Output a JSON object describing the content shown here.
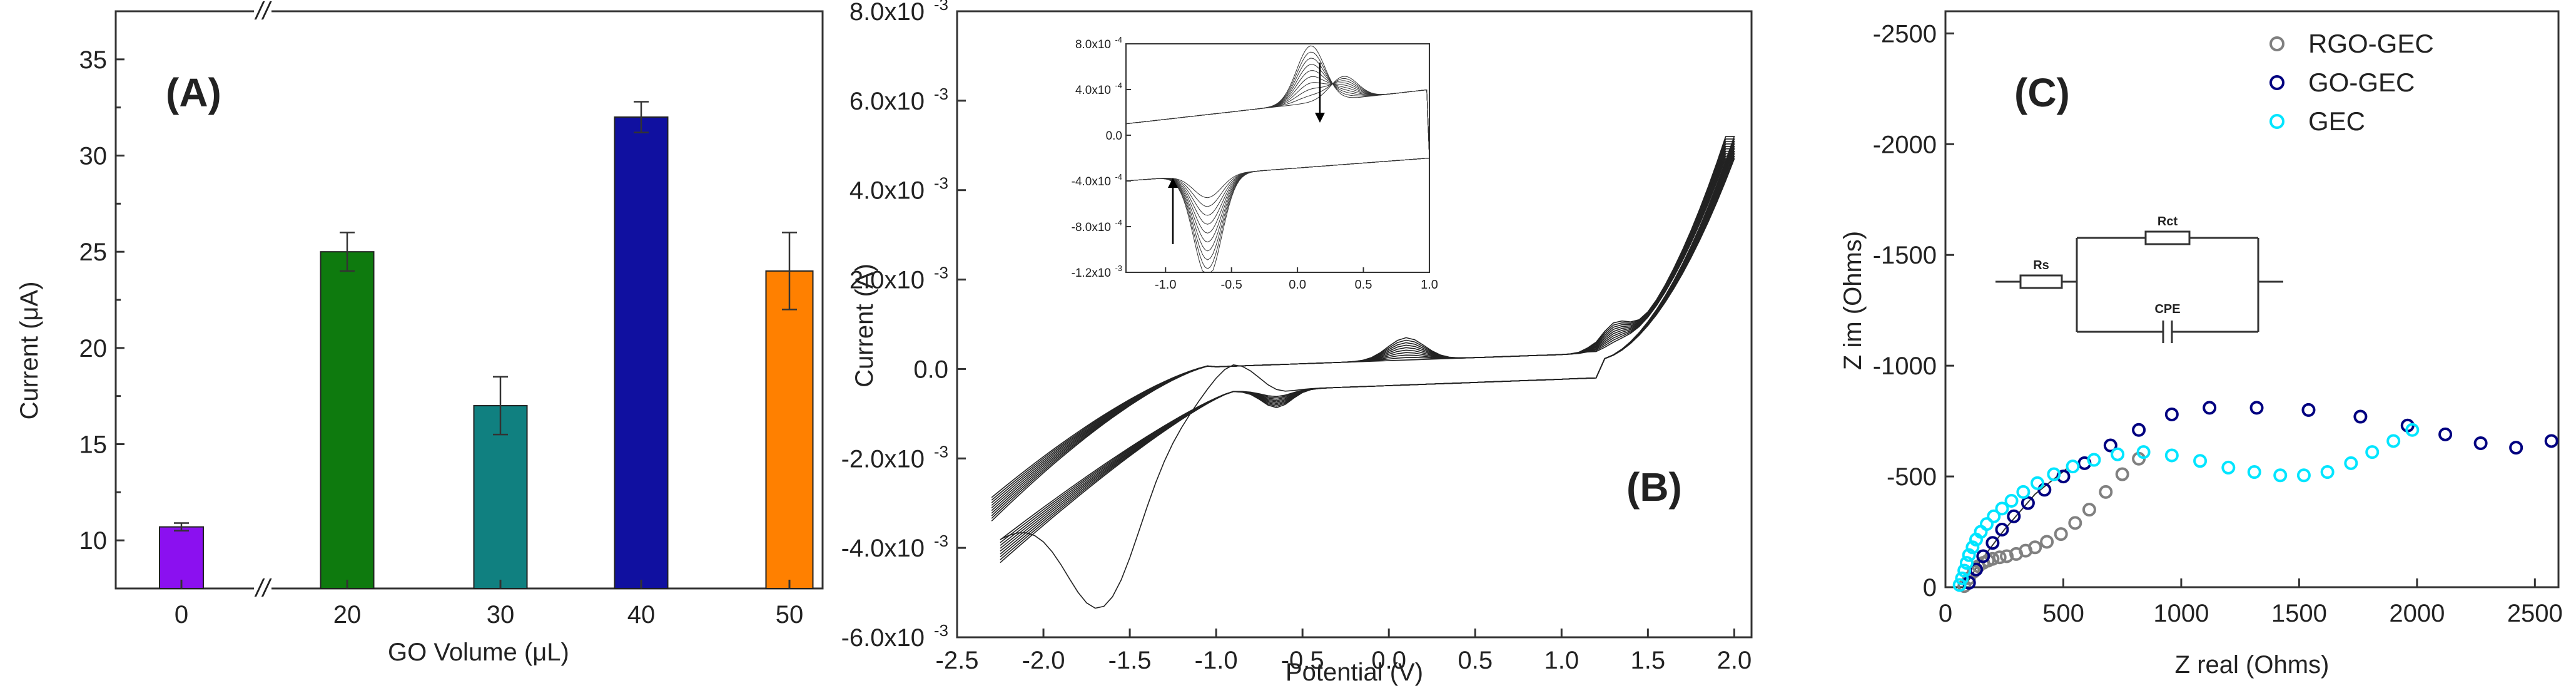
{
  "chart_data": [
    {
      "type": "bar",
      "panel_label": "(A)",
      "categories": [
        "0",
        "20",
        "30",
        "40",
        "50"
      ],
      "values": [
        10.7,
        25.0,
        17.0,
        32.0,
        24.0
      ],
      "errors": [
        0.2,
        1.0,
        1.5,
        0.8,
        2.0
      ],
      "colors": [
        "#8B10F0",
        "#0E7A0E",
        "#108080",
        "#1010A0",
        "#FF8000"
      ],
      "xlabel": "GO Volume (μL)",
      "ylabel": "Current (μA)",
      "ylim": [
        7.5,
        37.5
      ],
      "yticks": [
        "10",
        "15",
        "20",
        "25",
        "30",
        "35"
      ],
      "axis_break": "//"
    },
    {
      "type": "line",
      "panel_label": "(B)",
      "xlabel": "Potential (V)",
      "ylabel": "Current (A)",
      "xlim": [
        -2.5,
        2.1
      ],
      "ylim": [
        -0.006,
        0.008
      ],
      "xticks": [
        "-2.5",
        "-2.0",
        "-1.5",
        "-1.0",
        "-0.5",
        "0.0",
        "0.5",
        "1.0",
        "1.5",
        "2.0"
      ],
      "yticks": [
        "-6.0x10",
        "-4.0x10",
        "-2.0x10",
        "0.0",
        "2.0x10",
        "4.0x10",
        "6.0x10",
        "8.0x10"
      ],
      "ytick_exp": "-3",
      "series_count": 10,
      "inset": {
        "xlim": [
          -1.3,
          1.0
        ],
        "ylim": [
          -0.0012,
          0.0008
        ],
        "xticks": [
          "-1.0",
          "-0.5",
          "0.0",
          "0.5",
          "1.0"
        ],
        "yticks": [
          "-1.2x10",
          "-8.0x10",
          "-4.0x10",
          "0.0",
          "4.0x10",
          "8.0x10"
        ],
        "ytick_exps": [
          "-3",
          "-4",
          "-4",
          "",
          "-4",
          "-4"
        ]
      }
    },
    {
      "type": "scatter",
      "panel_label": "(C)",
      "xlabel": "Z real (Ohms)",
      "ylabel": "Z im (Ohms)",
      "xlim": [
        0,
        2600
      ],
      "ylim": [
        0,
        -2600
      ],
      "xticks": [
        "0",
        "500",
        "1000",
        "1500",
        "2000",
        "2500"
      ],
      "yticks": [
        "0",
        "-500",
        "-1000",
        "-1500",
        "-2000",
        "-2500"
      ],
      "series": [
        {
          "name": "RGO-GEC",
          "color": "#808080",
          "x": [
            80,
            100,
            120,
            140,
            160,
            180,
            200,
            230,
            260,
            300,
            340,
            380,
            430,
            490,
            550,
            610,
            680,
            750,
            820
          ],
          "y": [
            -5,
            -40,
            -70,
            -95,
            -110,
            -120,
            -128,
            -135,
            -140,
            -150,
            -165,
            -180,
            -205,
            -240,
            -290,
            -350,
            -430,
            -510,
            -580
          ]
        },
        {
          "name": "GO-GEC",
          "color": "#000080",
          "x": [
            100,
            130,
            160,
            200,
            240,
            290,
            350,
            420,
            500,
            590,
            700,
            820,
            960,
            1120,
            1320,
            1540,
            1760,
            1960,
            2120,
            2270,
            2420,
            2570
          ],
          "y": [
            -20,
            -80,
            -140,
            -200,
            -260,
            -320,
            -380,
            -440,
            -500,
            -560,
            -640,
            -710,
            -780,
            -810,
            -810,
            -800,
            -770,
            -730,
            -690,
            -650,
            -630,
            -660
          ]
        },
        {
          "name": "GEC",
          "color": "#00E5FF",
          "x": [
            60,
            70,
            80,
            90,
            100,
            115,
            130,
            150,
            175,
            205,
            240,
            280,
            330,
            390,
            460,
            540,
            630,
            730,
            840,
            960,
            1080,
            1200,
            1310,
            1420,
            1520,
            1620,
            1720,
            1810,
            1900,
            1980
          ],
          "y": [
            -10,
            -40,
            -75,
            -110,
            -145,
            -180,
            -215,
            -250,
            -285,
            -320,
            -355,
            -390,
            -430,
            -470,
            -510,
            -545,
            -575,
            -600,
            -610,
            -595,
            -570,
            -540,
            -520,
            -505,
            -505,
            -520,
            -560,
            -610,
            -660,
            -710
          ]
        }
      ],
      "circuit_labels": [
        "Rs",
        "Rct",
        "CPE"
      ]
    }
  ]
}
